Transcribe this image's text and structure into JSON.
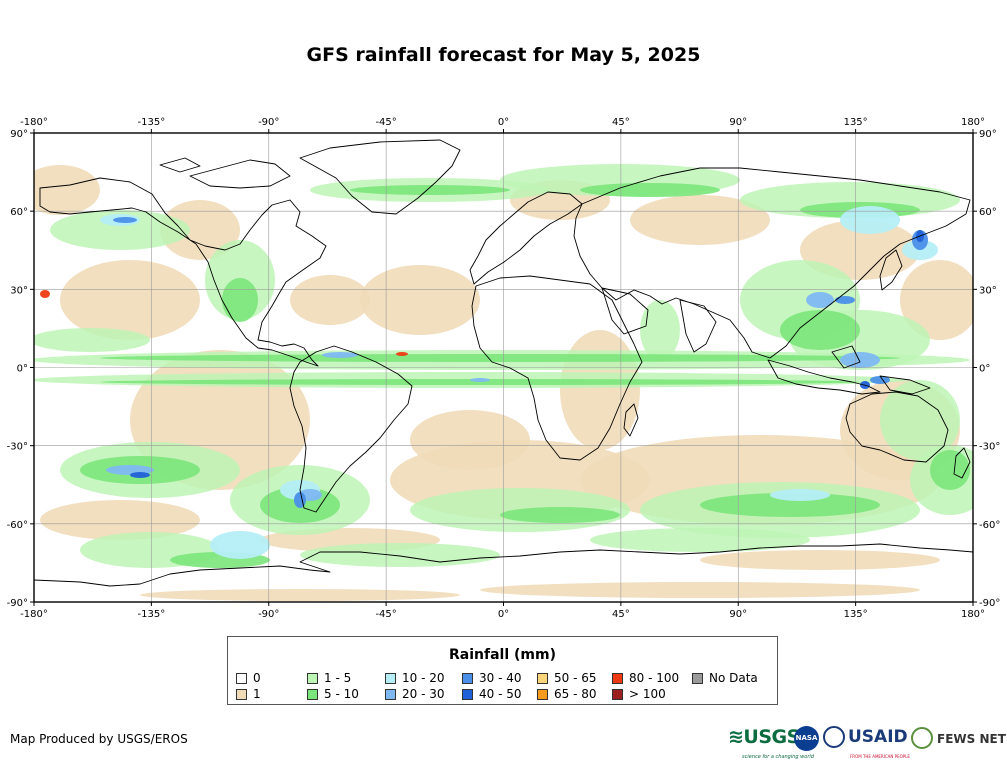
{
  "title": "GFS rainfall forecast for May 5, 2025",
  "map": {
    "lon_ticks": [
      "-180°",
      "-135°",
      "-90°",
      "-45°",
      "0°",
      "45°",
      "90°",
      "135°",
      "180°"
    ],
    "lat_ticks": [
      "90°",
      "60°",
      "30°",
      "0°",
      "-30°",
      "-60°",
      "-90°"
    ],
    "lon_range": [
      -180,
      180
    ],
    "lat_range": [
      -90,
      90
    ],
    "gridlines": true
  },
  "legend": {
    "title": "Rainfall (mm)",
    "items": [
      {
        "label": "0",
        "color": "#ffffff"
      },
      {
        "label": "1",
        "color": "#f0dbb8"
      },
      {
        "label": "1 - 5",
        "color": "#bdf5b5"
      },
      {
        "label": "5 - 10",
        "color": "#7be67b"
      },
      {
        "label": "10 - 20",
        "color": "#b5eef5"
      },
      {
        "label": "20 - 30",
        "color": "#80b8f2"
      },
      {
        "label": "30 - 40",
        "color": "#4a8fe8"
      },
      {
        "label": "40 - 50",
        "color": "#2060d8"
      },
      {
        "label": "50 - 65",
        "color": "#fad57a"
      },
      {
        "label": "65 - 80",
        "color": "#f59a1c"
      },
      {
        "label": "80 - 100",
        "color": "#ee3a12"
      },
      {
        "label": "> 100",
        "color": "#9c1f1f"
      },
      {
        "label": "No Data",
        "color": "#9a9a9a"
      }
    ]
  },
  "footer": {
    "producer": "Map Produced by USGS/EROS",
    "logos": {
      "usgs": "≋USGS",
      "usgs_tagline": "science for a changing world",
      "nasa": "NASA",
      "usaid": "USAID",
      "usaid_tagline": "FROM THE AMERICAN PEOPLE",
      "fews": "FEWS NET"
    }
  }
}
